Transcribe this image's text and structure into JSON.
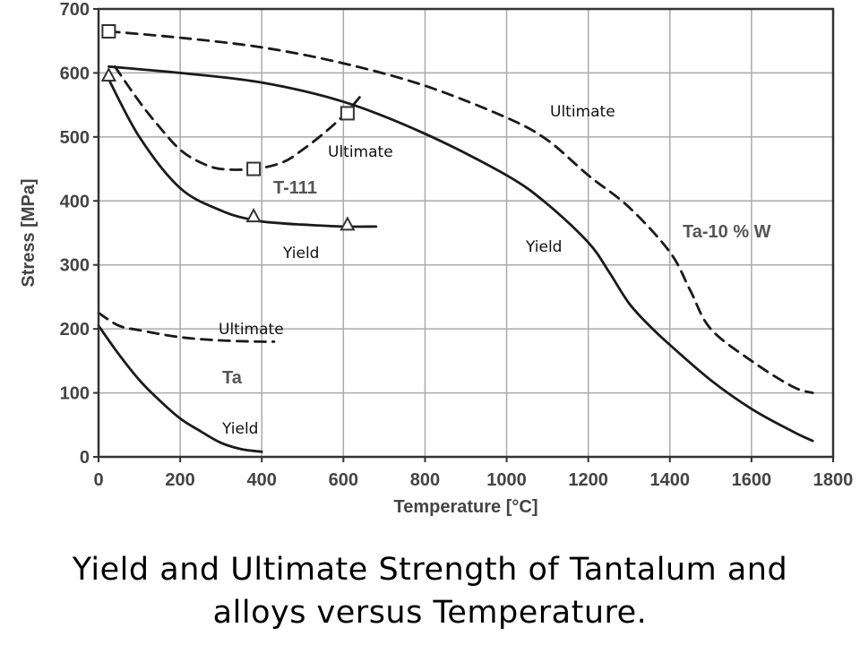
{
  "chart_data": {
    "type": "line",
    "xlabel": "Temperature [°C]",
    "ylabel": "Stress [MPa]",
    "xlim": [
      0,
      1800
    ],
    "ylim": [
      0,
      700
    ],
    "x_ticks": [
      "0",
      "200",
      "400",
      "600",
      "800",
      "1000",
      "1200",
      "1400",
      "1600",
      "1800"
    ],
    "y_ticks": [
      "0",
      "100",
      "200",
      "300",
      "400",
      "500",
      "600",
      "700"
    ],
    "grid": true,
    "series": [
      {
        "name": "Ultimate",
        "group": "Ta-10 % W",
        "style": "dashed",
        "x": [
          25,
          200,
          400,
          600,
          800,
          1000,
          1100,
          1200,
          1300,
          1400,
          1450,
          1500,
          1600,
          1700,
          1750
        ],
        "y": [
          665,
          655,
          640,
          615,
          580,
          530,
          495,
          440,
          390,
          320,
          260,
          200,
          150,
          110,
          100
        ]
      },
      {
        "name": "Yield",
        "group": "Ta-10 % W",
        "style": "solid",
        "x": [
          25,
          200,
          400,
          600,
          800,
          1000,
          1100,
          1200,
          1250,
          1300,
          1350,
          1400,
          1500,
          1600,
          1700,
          1750
        ],
        "y": [
          610,
          600,
          585,
          555,
          505,
          440,
          395,
          335,
          290,
          240,
          205,
          175,
          120,
          75,
          40,
          25
        ]
      },
      {
        "name": "Ultimate",
        "group": "T-111",
        "style": "dashed",
        "x": [
          40,
          100,
          150,
          200,
          250,
          300,
          380,
          450,
          500,
          560,
          610,
          650
        ],
        "y": [
          610,
          555,
          515,
          480,
          460,
          450,
          450,
          460,
          480,
          510,
          540,
          570
        ]
      },
      {
        "name": "Yield",
        "group": "T-111",
        "style": "solid",
        "x": [
          25,
          100,
          200,
          300,
          380,
          450,
          500,
          600,
          680
        ],
        "y": [
          590,
          500,
          420,
          385,
          370,
          365,
          363,
          360,
          360
        ]
      },
      {
        "name": "Ultimate",
        "group": "Ta",
        "style": "dashed",
        "x": [
          0,
          50,
          100,
          200,
          300,
          400,
          430
        ],
        "y": [
          225,
          205,
          198,
          187,
          182,
          180,
          180
        ]
      },
      {
        "name": "Yield",
        "group": "Ta",
        "style": "solid",
        "x": [
          0,
          50,
          100,
          150,
          200,
          250,
          300,
          350,
          400
        ],
        "y": [
          205,
          160,
          120,
          88,
          60,
          40,
          22,
          12,
          8
        ]
      }
    ],
    "markers": [
      {
        "shape": "square",
        "x": 25,
        "y": 665
      },
      {
        "shape": "square",
        "x": 380,
        "y": 450
      },
      {
        "shape": "square",
        "x": 610,
        "y": 537
      },
      {
        "shape": "triangle",
        "x": 25,
        "y": 595
      },
      {
        "shape": "triangle",
        "x": 380,
        "y": 375
      },
      {
        "shape": "triangle",
        "x": 610,
        "y": 362
      }
    ],
    "curve_labels": [
      "T-111",
      "Ta-10 % W",
      "Ta"
    ],
    "annotations": [
      "Ultimate",
      "Ultimate",
      "Yield",
      "Yield",
      "Ultimate",
      "Yield"
    ]
  },
  "caption": {
    "line1": "Yield and Ultimate Strength of Tantalum and",
    "line2": "alloys versus Temperature."
  }
}
